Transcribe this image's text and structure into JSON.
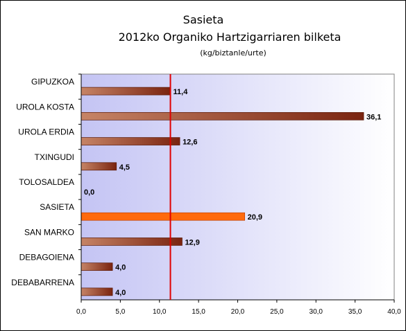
{
  "chart_data": {
    "type": "bar",
    "orientation": "horizontal",
    "title": "Sasieta",
    "subtitle": "2012ko Organiko Hartzigarriaren bilketa",
    "unit_label": "(kg/biztanle/urte)",
    "categories": [
      "GIPUZKOA",
      "UROLA KOSTA",
      "UROLA ERDIA",
      "TXINGUDI",
      "TOLOSALDEA",
      "SASIETA",
      "SAN MARKO",
      "DEBAGOIENA",
      "DEBABARRENA"
    ],
    "values": [
      11.4,
      36.1,
      12.6,
      4.5,
      0.0,
      20.9,
      12.9,
      4.0,
      4.0
    ],
    "value_labels": [
      "11,4",
      "36,1",
      "12,6",
      "4,5",
      "0,0",
      "20,9",
      "12,9",
      "4,0",
      "4,0"
    ],
    "highlight_category": "SASIETA",
    "reference_line": {
      "value": 11.4
    },
    "xlim": [
      0,
      40
    ],
    "xticks": [
      0,
      5,
      10,
      15,
      20,
      25,
      30,
      35,
      40
    ],
    "xtick_labels": [
      "0,0",
      "5,0",
      "10,0",
      "15,0",
      "20,0",
      "25,0",
      "30,0",
      "35,0",
      "40,0"
    ],
    "grid": false,
    "legend": "none",
    "colors": {
      "bar_start": "#c68466",
      "bar_end": "#7a2410",
      "highlight": "#ff6a0d",
      "highlight_edge": "#c04000",
      "reference_line": "#e00000",
      "plot_bg_left": "#c4c4f4",
      "plot_bg_right": "#ffffff"
    }
  }
}
